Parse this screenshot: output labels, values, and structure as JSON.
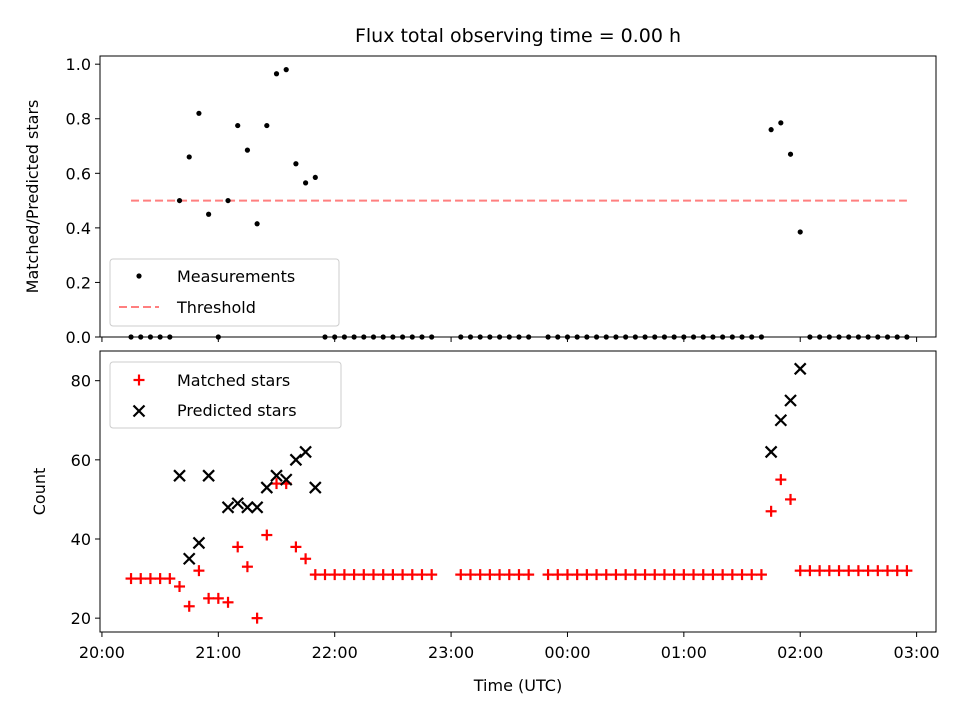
{
  "figure": {
    "title": "Flux total observing time = 0.00 h"
  },
  "chart_data": [
    {
      "type": "scatter",
      "ylabel": "Matched/Predicted stars",
      "ylim": [
        0,
        1.03
      ],
      "yticks": [
        "0.0",
        "0.2",
        "0.4",
        "0.6",
        "0.8",
        "1.0"
      ],
      "ytick_values": [
        0,
        0.2,
        0.4,
        0.6,
        0.8,
        1.0
      ],
      "legend_position": "lower-left",
      "threshold": {
        "name": "Threshold",
        "value": 0.5,
        "color": "#ff7f7f",
        "x_start": "20:15",
        "x_end": "02:55"
      },
      "series": [
        {
          "name": "Measurements",
          "color": "#000000",
          "points": [
            [
              "20:15",
              0
            ],
            [
              "20:20",
              0
            ],
            [
              "20:25",
              0
            ],
            [
              "20:30",
              0
            ],
            [
              "20:35",
              0
            ],
            [
              "20:40",
              0.5
            ],
            [
              "20:45",
              0.66
            ],
            [
              "20:50",
              0.82
            ],
            [
              "20:55",
              0.45
            ],
            [
              "21:00",
              0
            ],
            [
              "21:05",
              0.5
            ],
            [
              "21:10",
              0.775
            ],
            [
              "21:15",
              0.685
            ],
            [
              "21:20",
              0.415
            ],
            [
              "21:25",
              0.775
            ],
            [
              "21:30",
              0.965
            ],
            [
              "21:35",
              0.98
            ],
            [
              "21:40",
              0.635
            ],
            [
              "21:45",
              0.565
            ],
            [
              "21:50",
              0.585
            ],
            [
              "21:55",
              0
            ],
            [
              "22:00",
              0
            ],
            [
              "22:05",
              0
            ],
            [
              "22:10",
              0
            ],
            [
              "22:15",
              0
            ],
            [
              "22:20",
              0
            ],
            [
              "22:25",
              0
            ],
            [
              "22:30",
              0
            ],
            [
              "22:35",
              0
            ],
            [
              "22:40",
              0
            ],
            [
              "22:45",
              0
            ],
            [
              "22:50",
              0
            ],
            [
              "23:05",
              0
            ],
            [
              "23:10",
              0
            ],
            [
              "23:15",
              0
            ],
            [
              "23:20",
              0
            ],
            [
              "23:25",
              0
            ],
            [
              "23:30",
              0
            ],
            [
              "23:35",
              0
            ],
            [
              "23:40",
              0
            ],
            [
              "23:50",
              0
            ],
            [
              "23:55",
              0
            ],
            [
              "00:00",
              0
            ],
            [
              "00:05",
              0
            ],
            [
              "00:10",
              0
            ],
            [
              "00:15",
              0
            ],
            [
              "00:20",
              0
            ],
            [
              "00:25",
              0
            ],
            [
              "00:30",
              0
            ],
            [
              "00:35",
              0
            ],
            [
              "00:40",
              0
            ],
            [
              "00:45",
              0
            ],
            [
              "00:50",
              0
            ],
            [
              "00:55",
              0
            ],
            [
              "01:00",
              0
            ],
            [
              "01:05",
              0
            ],
            [
              "01:10",
              0
            ],
            [
              "01:15",
              0
            ],
            [
              "01:20",
              0
            ],
            [
              "01:25",
              0
            ],
            [
              "01:30",
              0
            ],
            [
              "01:35",
              0
            ],
            [
              "01:40",
              0
            ],
            [
              "01:45",
              0.76
            ],
            [
              "01:50",
              0.785
            ],
            [
              "01:55",
              0.67
            ],
            [
              "02:00",
              0.385
            ],
            [
              "02:05",
              0
            ],
            [
              "02:10",
              0
            ],
            [
              "02:15",
              0
            ],
            [
              "02:20",
              0
            ],
            [
              "02:25",
              0
            ],
            [
              "02:30",
              0
            ],
            [
              "02:35",
              0
            ],
            [
              "02:40",
              0
            ],
            [
              "02:45",
              0
            ],
            [
              "02:50",
              0
            ],
            [
              "02:55",
              0
            ]
          ]
        }
      ]
    },
    {
      "type": "scatter",
      "xlabel": "Time (UTC)",
      "ylabel": "Count",
      "ylim": [
        16.5,
        87.5
      ],
      "yticks": [
        "20",
        "40",
        "60",
        "80"
      ],
      "ytick_values": [
        20,
        40,
        60,
        80
      ],
      "xlim": [
        "19:59",
        "03:10"
      ],
      "xticks": [
        "20:00",
        "21:00",
        "22:00",
        "23:00",
        "00:00",
        "01:00",
        "02:00",
        "03:00"
      ],
      "legend_position": "top-left",
      "series": [
        {
          "name": "Matched stars",
          "marker": "plus",
          "color": "#ff0000",
          "points": [
            [
              "20:15",
              30
            ],
            [
              "20:20",
              30
            ],
            [
              "20:25",
              30
            ],
            [
              "20:30",
              30
            ],
            [
              "20:35",
              30
            ],
            [
              "20:40",
              28
            ],
            [
              "20:45",
              23
            ],
            [
              "20:50",
              32
            ],
            [
              "20:55",
              25
            ],
            [
              "21:00",
              25
            ],
            [
              "21:05",
              24
            ],
            [
              "21:10",
              38
            ],
            [
              "21:15",
              33
            ],
            [
              "21:20",
              20
            ],
            [
              "21:25",
              41
            ],
            [
              "21:30",
              54
            ],
            [
              "21:35",
              54
            ],
            [
              "21:40",
              38
            ],
            [
              "21:45",
              35
            ],
            [
              "21:50",
              31
            ],
            [
              "21:55",
              31
            ],
            [
              "22:00",
              31
            ],
            [
              "22:05",
              31
            ],
            [
              "22:10",
              31
            ],
            [
              "22:15",
              31
            ],
            [
              "22:20",
              31
            ],
            [
              "22:25",
              31
            ],
            [
              "22:30",
              31
            ],
            [
              "22:35",
              31
            ],
            [
              "22:40",
              31
            ],
            [
              "22:45",
              31
            ],
            [
              "22:50",
              31
            ],
            [
              "23:05",
              31
            ],
            [
              "23:10",
              31
            ],
            [
              "23:15",
              31
            ],
            [
              "23:20",
              31
            ],
            [
              "23:25",
              31
            ],
            [
              "23:30",
              31
            ],
            [
              "23:35",
              31
            ],
            [
              "23:40",
              31
            ],
            [
              "23:50",
              31
            ],
            [
              "23:55",
              31
            ],
            [
              "00:00",
              31
            ],
            [
              "00:05",
              31
            ],
            [
              "00:10",
              31
            ],
            [
              "00:15",
              31
            ],
            [
              "00:20",
              31
            ],
            [
              "00:25",
              31
            ],
            [
              "00:30",
              31
            ],
            [
              "00:35",
              31
            ],
            [
              "00:40",
              31
            ],
            [
              "00:45",
              31
            ],
            [
              "00:50",
              31
            ],
            [
              "00:55",
              31
            ],
            [
              "01:00",
              31
            ],
            [
              "01:05",
              31
            ],
            [
              "01:10",
              31
            ],
            [
              "01:15",
              31
            ],
            [
              "01:20",
              31
            ],
            [
              "01:25",
              31
            ],
            [
              "01:30",
              31
            ],
            [
              "01:35",
              31
            ],
            [
              "01:40",
              31
            ],
            [
              "01:45",
              47
            ],
            [
              "01:50",
              55
            ],
            [
              "01:55",
              50
            ],
            [
              "02:00",
              32
            ],
            [
              "02:05",
              32
            ],
            [
              "02:10",
              32
            ],
            [
              "02:15",
              32
            ],
            [
              "02:20",
              32
            ],
            [
              "02:25",
              32
            ],
            [
              "02:30",
              32
            ],
            [
              "02:35",
              32
            ],
            [
              "02:40",
              32
            ],
            [
              "02:45",
              32
            ],
            [
              "02:50",
              32
            ],
            [
              "02:55",
              32
            ]
          ]
        },
        {
          "name": "Predicted stars",
          "marker": "x",
          "color": "#000000",
          "points": [
            [
              "20:40",
              56
            ],
            [
              "20:45",
              35
            ],
            [
              "20:50",
              39
            ],
            [
              "20:55",
              56
            ],
            [
              "21:05",
              48
            ],
            [
              "21:10",
              49
            ],
            [
              "21:15",
              48
            ],
            [
              "21:20",
              48
            ],
            [
              "21:25",
              53
            ],
            [
              "21:30",
              56
            ],
            [
              "21:35",
              55
            ],
            [
              "21:40",
              60
            ],
            [
              "21:45",
              62
            ],
            [
              "21:50",
              53
            ],
            [
              "01:45",
              62
            ],
            [
              "01:50",
              70
            ],
            [
              "01:55",
              75
            ],
            [
              "02:00",
              83
            ]
          ]
        }
      ]
    }
  ]
}
